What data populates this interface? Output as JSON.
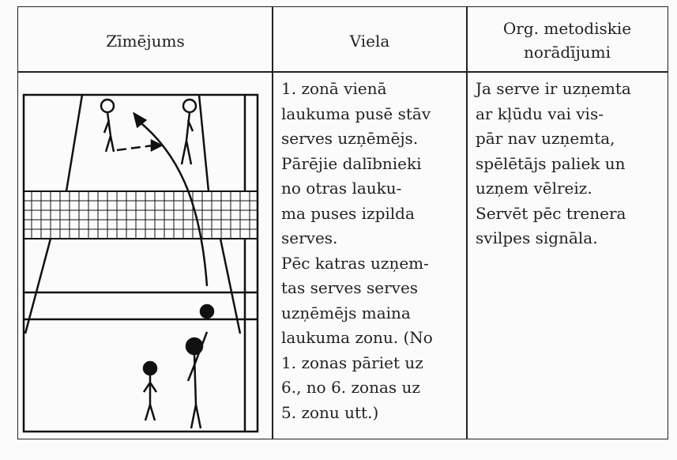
{
  "table": {
    "header": [
      [
        "Zīmējums"
      ],
      [
        "Viela"
      ],
      [
        "Org. metodiskie",
        "norādījumi"
      ]
    ],
    "rows": [
      [
        [],
        [
          "1. zonā vienā",
          "laukuma pusē stāv",
          "serves uzņēmējs.",
          "Pārējie dalībnieki",
          "no otras lauku-",
          "ma puses izpilda",
          "serves.",
          "Pēc katras uzņem-",
          "tas serves serves",
          "uzņēmējs maina",
          "laukuma zonu. (No",
          "1. zonas pāriet uz",
          "6., no 6. zonas uz",
          "5. zonu utt.)"
        ],
        [
          "Ja serve ir uzņemta",
          "ar kļūdu vai vis-",
          "pār nav uzņemta,",
          "spēlētājs paliek un",
          "uzņem vēlreiz.",
          "Servēt pēc trenera",
          "svilpes signāla."
        ]
      ]
    ]
  }
}
